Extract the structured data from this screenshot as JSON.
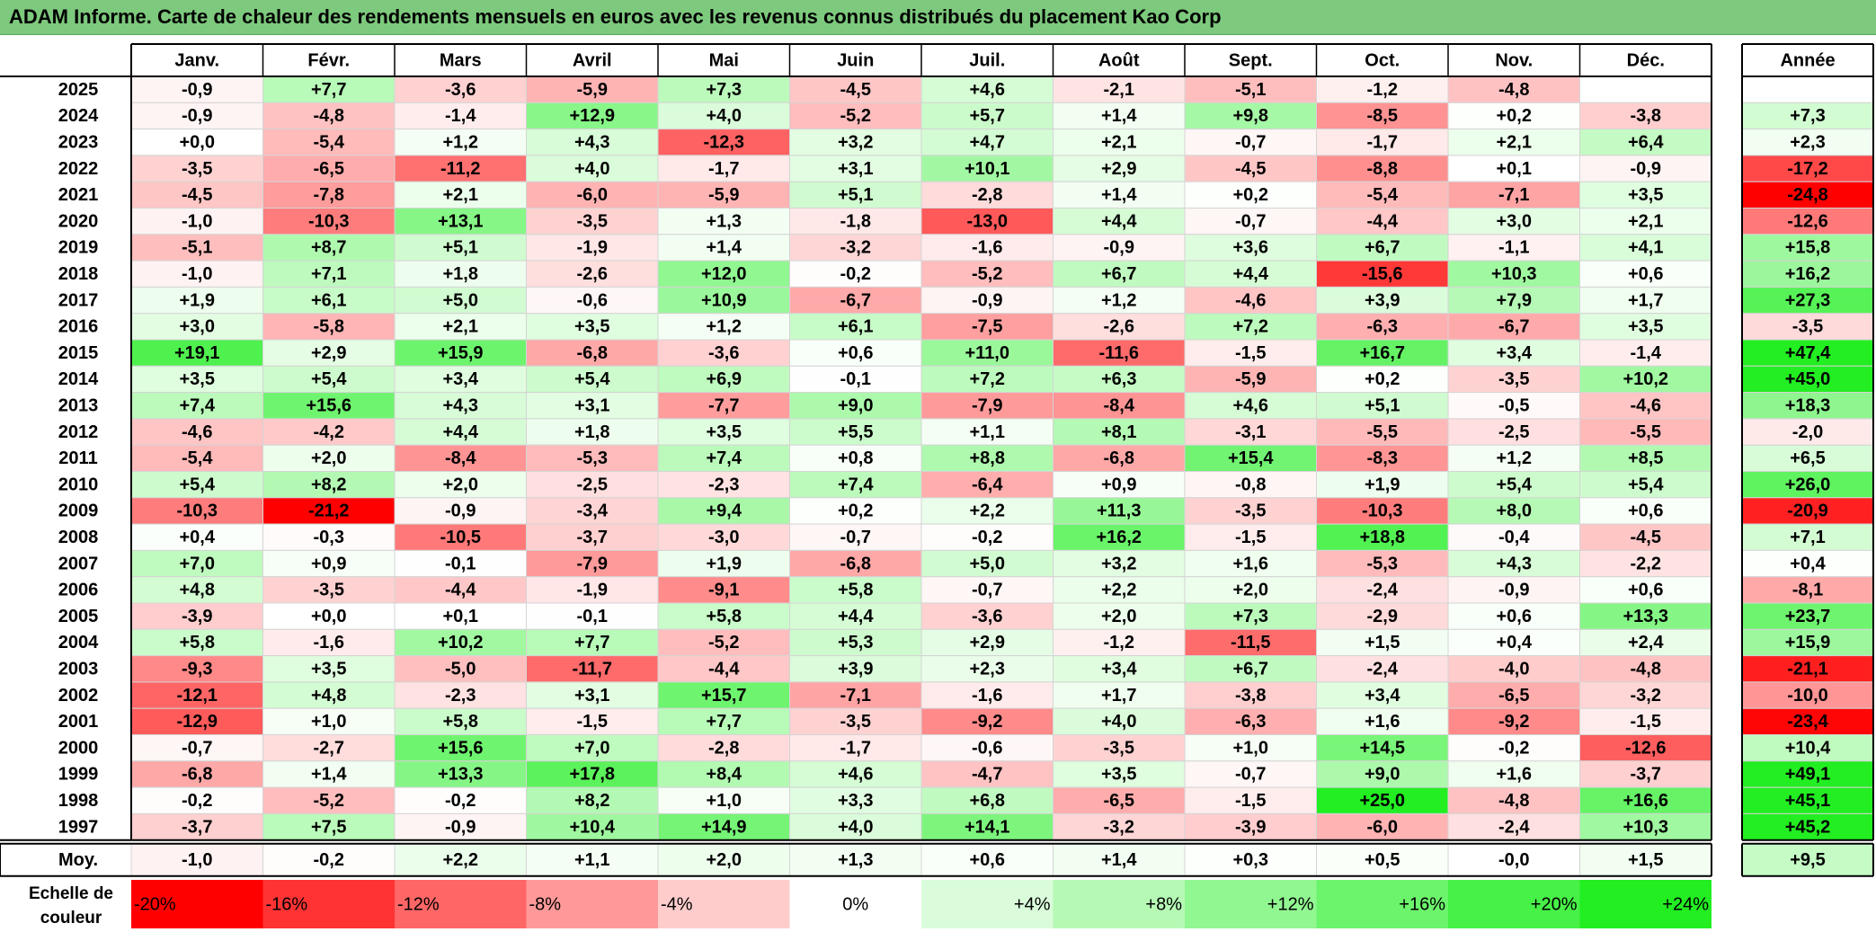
{
  "title": "ADAM Informe. Carte de chaleur des rendements mensuels en euros avec les revenus connus distribués du placement Kao Corp",
  "chart_data": {
    "type": "heatmap",
    "columns": [
      "Janv.",
      "Févr.",
      "Mars",
      "Avril",
      "Mai",
      "Juin",
      "Juil.",
      "Août",
      "Sept.",
      "Oct.",
      "Nov.",
      "Déc."
    ],
    "year_column": "Année",
    "rows": [
      {
        "year": "2025",
        "values": [
          "-0,9",
          "+7,7",
          "-3,6",
          "-5,9",
          "+7,3",
          "-4,5",
          "+4,6",
          "-2,1",
          "-5,1",
          "-1,2",
          "-4,8",
          ""
        ],
        "annual": ""
      },
      {
        "year": "2024",
        "values": [
          "-0,9",
          "-4,8",
          "-1,4",
          "+12,9",
          "+4,0",
          "-5,2",
          "+5,7",
          "+1,4",
          "+9,8",
          "-8,5",
          "+0,2",
          "-3,8"
        ],
        "annual": "+7,3"
      },
      {
        "year": "2023",
        "values": [
          "+0,0",
          "-5,4",
          "+1,2",
          "+4,3",
          "-12,3",
          "+3,2",
          "+4,7",
          "+2,1",
          "-0,7",
          "-1,7",
          "+2,1",
          "+6,4"
        ],
        "annual": "+2,3"
      },
      {
        "year": "2022",
        "values": [
          "-3,5",
          "-6,5",
          "-11,2",
          "+4,0",
          "-1,7",
          "+3,1",
          "+10,1",
          "+2,9",
          "-4,5",
          "-8,8",
          "+0,1",
          "-0,9"
        ],
        "annual": "-17,2"
      },
      {
        "year": "2021",
        "values": [
          "-4,5",
          "-7,8",
          "+2,1",
          "-6,0",
          "-5,9",
          "+5,1",
          "-2,8",
          "+1,4",
          "+0,2",
          "-5,4",
          "-7,1",
          "+3,5"
        ],
        "annual": "-24,8"
      },
      {
        "year": "2020",
        "values": [
          "-1,0",
          "-10,3",
          "+13,1",
          "-3,5",
          "+1,3",
          "-1,8",
          "-13,0",
          "+4,4",
          "-0,7",
          "-4,4",
          "+3,0",
          "+2,1"
        ],
        "annual": "-12,6"
      },
      {
        "year": "2019",
        "values": [
          "-5,1",
          "+8,7",
          "+5,1",
          "-1,9",
          "+1,4",
          "-3,2",
          "-1,6",
          "-0,9",
          "+3,6",
          "+6,7",
          "-1,1",
          "+4,1"
        ],
        "annual": "+15,8"
      },
      {
        "year": "2018",
        "values": [
          "-1,0",
          "+7,1",
          "+1,8",
          "-2,6",
          "+12,0",
          "-0,2",
          "-5,2",
          "+6,7",
          "+4,4",
          "-15,6",
          "+10,3",
          "+0,6"
        ],
        "annual": "+16,2"
      },
      {
        "year": "2017",
        "values": [
          "+1,9",
          "+6,1",
          "+5,0",
          "-0,6",
          "+10,9",
          "-6,7",
          "-0,9",
          "+1,2",
          "-4,6",
          "+3,9",
          "+7,9",
          "+1,7"
        ],
        "annual": "+27,3"
      },
      {
        "year": "2016",
        "values": [
          "+3,0",
          "-5,8",
          "+2,1",
          "+3,5",
          "+1,2",
          "+6,1",
          "-7,5",
          "-2,6",
          "+7,2",
          "-6,3",
          "-6,7",
          "+3,5"
        ],
        "annual": "-3,5"
      },
      {
        "year": "2015",
        "values": [
          "+19,1",
          "+2,9",
          "+15,9",
          "-6,8",
          "-3,6",
          "+0,6",
          "+11,0",
          "-11,6",
          "-1,5",
          "+16,7",
          "+3,4",
          "-1,4"
        ],
        "annual": "+47,4"
      },
      {
        "year": "2014",
        "values": [
          "+3,5",
          "+5,4",
          "+3,4",
          "+5,4",
          "+6,9",
          "-0,1",
          "+7,2",
          "+6,3",
          "-5,9",
          "+0,2",
          "-3,5",
          "+10,2"
        ],
        "annual": "+45,0"
      },
      {
        "year": "2013",
        "values": [
          "+7,4",
          "+15,6",
          "+4,3",
          "+3,1",
          "-7,7",
          "+9,0",
          "-7,9",
          "-8,4",
          "+4,6",
          "+5,1",
          "-0,5",
          "-4,6"
        ],
        "annual": "+18,3"
      },
      {
        "year": "2012",
        "values": [
          "-4,6",
          "-4,2",
          "+4,4",
          "+1,8",
          "+3,5",
          "+5,5",
          "+1,1",
          "+8,1",
          "-3,1",
          "-5,5",
          "-2,5",
          "-5,5"
        ],
        "annual": "-2,0"
      },
      {
        "year": "2011",
        "values": [
          "-5,4",
          "+2,0",
          "-8,4",
          "-5,3",
          "+7,4",
          "+0,8",
          "+8,8",
          "-6,8",
          "+15,4",
          "-8,3",
          "+1,2",
          "+8,5"
        ],
        "annual": "+6,5"
      },
      {
        "year": "2010",
        "values": [
          "+5,4",
          "+8,2",
          "+2,0",
          "-2,5",
          "-2,3",
          "+7,4",
          "-6,4",
          "+0,9",
          "-0,8",
          "+1,9",
          "+5,4",
          "+5,4"
        ],
        "annual": "+26,0"
      },
      {
        "year": "2009",
        "values": [
          "-10,3",
          "-21,2",
          "-0,9",
          "-3,4",
          "+9,4",
          "+0,2",
          "+2,2",
          "+11,3",
          "-3,5",
          "-10,3",
          "+8,0",
          "+0,6"
        ],
        "annual": "-20,9"
      },
      {
        "year": "2008",
        "values": [
          "+0,4",
          "-0,3",
          "-10,5",
          "-3,7",
          "-3,0",
          "-0,7",
          "-0,2",
          "+16,2",
          "-1,5",
          "+18,8",
          "-0,4",
          "-4,5"
        ],
        "annual": "+7,1"
      },
      {
        "year": "2007",
        "values": [
          "+7,0",
          "+0,9",
          "-0,1",
          "-7,9",
          "+1,9",
          "-6,8",
          "+5,0",
          "+3,2",
          "+1,6",
          "-5,3",
          "+4,3",
          "-2,2"
        ],
        "annual": "+0,4"
      },
      {
        "year": "2006",
        "values": [
          "+4,8",
          "-3,5",
          "-4,4",
          "-1,9",
          "-9,1",
          "+5,8",
          "-0,7",
          "+2,2",
          "+2,0",
          "-2,4",
          "-0,9",
          "+0,6"
        ],
        "annual": "-8,1"
      },
      {
        "year": "2005",
        "values": [
          "-3,9",
          "+0,0",
          "+0,1",
          "-0,1",
          "+5,8",
          "+4,4",
          "-3,6",
          "+2,0",
          "+7,3",
          "-2,9",
          "+0,6",
          "+13,3"
        ],
        "annual": "+23,7"
      },
      {
        "year": "2004",
        "values": [
          "+5,8",
          "-1,6",
          "+10,2",
          "+7,7",
          "-5,2",
          "+5,3",
          "+2,9",
          "-1,2",
          "-11,5",
          "+1,5",
          "+0,4",
          "+2,4"
        ],
        "annual": "+15,9"
      },
      {
        "year": "2003",
        "values": [
          "-9,3",
          "+3,5",
          "-5,0",
          "-11,7",
          "-4,4",
          "+3,9",
          "+2,3",
          "+3,4",
          "+6,7",
          "-2,4",
          "-4,0",
          "-4,8"
        ],
        "annual": "-21,1"
      },
      {
        "year": "2002",
        "values": [
          "-12,1",
          "+4,8",
          "-2,3",
          "+3,1",
          "+15,7",
          "-7,1",
          "-1,6",
          "+1,7",
          "-3,8",
          "+3,4",
          "-6,5",
          "-3,2"
        ],
        "annual": "-10,0"
      },
      {
        "year": "2001",
        "values": [
          "-12,9",
          "+1,0",
          "+5,8",
          "-1,5",
          "+7,7",
          "-3,5",
          "-9,2",
          "+4,0",
          "-6,3",
          "+1,6",
          "-9,2",
          "-1,5"
        ],
        "annual": "-23,4"
      },
      {
        "year": "2000",
        "values": [
          "-0,7",
          "-2,7",
          "+15,6",
          "+7,0",
          "-2,8",
          "-1,7",
          "-0,6",
          "-3,5",
          "+1,0",
          "+14,5",
          "-0,2",
          "-12,6"
        ],
        "annual": "+10,4"
      },
      {
        "year": "1999",
        "values": [
          "-6,8",
          "+1,4",
          "+13,3",
          "+17,8",
          "+8,4",
          "+4,6",
          "-4,7",
          "+3,5",
          "-0,7",
          "+9,0",
          "+1,6",
          "-3,7"
        ],
        "annual": "+49,1"
      },
      {
        "year": "1998",
        "values": [
          "-0,2",
          "-5,2",
          "-0,2",
          "+8,2",
          "+1,0",
          "+3,3",
          "+6,8",
          "-6,5",
          "-1,5",
          "+25,0",
          "-4,8",
          "+16,6"
        ],
        "annual": "+45,1"
      },
      {
        "year": "1997",
        "values": [
          "-3,7",
          "+7,5",
          "-0,9",
          "+10,4",
          "+14,9",
          "+4,0",
          "+14,1",
          "-3,2",
          "-3,9",
          "-6,0",
          "-2,4",
          "+10,3"
        ],
        "annual": "+45,2"
      }
    ],
    "average_row": {
      "label": "Moy.",
      "values": [
        "-1,0",
        "-0,2",
        "+2,2",
        "+1,1",
        "+2,0",
        "+1,3",
        "+0,6",
        "+1,4",
        "+0,3",
        "+0,5",
        "-0,0",
        "+1,5"
      ],
      "annual": "+9,5"
    },
    "scale": {
      "label_line1": "Echelle de",
      "label_line2": "couleur",
      "items": [
        {
          "label": "-20%",
          "value": -20
        },
        {
          "label": "-16%",
          "value": -16
        },
        {
          "label": "-12%",
          "value": -12
        },
        {
          "label": "-8%",
          "value": -8
        },
        {
          "label": "-4%",
          "value": -4
        },
        {
          "label": "0%",
          "value": 0
        },
        {
          "label": "+4%",
          "value": 4
        },
        {
          "label": "+8%",
          "value": 8
        },
        {
          "label": "+12%",
          "value": 12
        },
        {
          "label": "+16%",
          "value": 16
        },
        {
          "label": "+20%",
          "value": 20
        },
        {
          "label": "+24%",
          "value": 24
        }
      ]
    },
    "colors": {
      "negative_max": "#ff0000",
      "neutral": "#ffffff",
      "positive_max": "#22ee22",
      "title_bar": "#7dc97d"
    }
  }
}
